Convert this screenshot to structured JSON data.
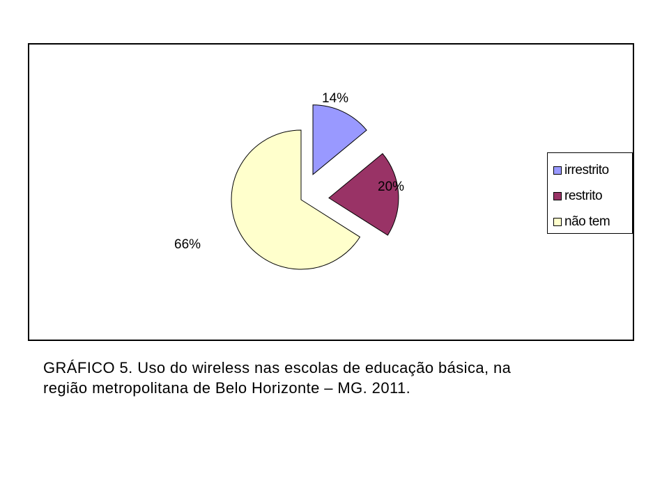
{
  "chart_data": {
    "type": "pie",
    "title": "",
    "exploded": true,
    "slices": [
      {
        "label": "irrestrito",
        "value": 14,
        "display": "14%",
        "color": "#9999ff"
      },
      {
        "label": "restrito",
        "value": 20,
        "display": "20%",
        "color": "#993366"
      },
      {
        "label": "não tem",
        "value": 66,
        "display": "66%",
        "color": "#ffffcc"
      }
    ],
    "legend": {
      "position": "right",
      "items": [
        "irrestrito",
        "restrito",
        "não tem"
      ]
    }
  },
  "caption": {
    "line1": "GRÁFICO 5. Uso do wireless nas escolas de educação básica, na",
    "line2": "região metropolitana de Belo Horizonte – MG. 2011."
  }
}
